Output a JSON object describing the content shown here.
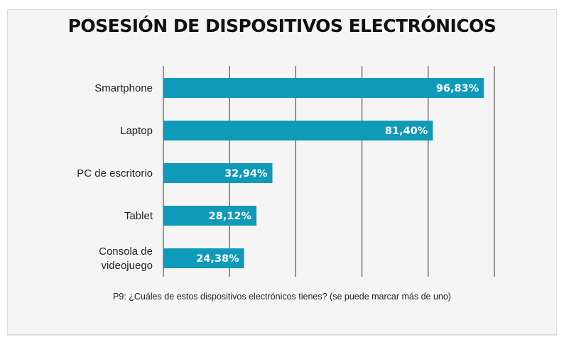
{
  "chart_data": {
    "type": "bar",
    "orientation": "horizontal",
    "title": "POSESIÓN DE DISPOSITIVOS ELECTRÓNICOS",
    "categories": [
      "Smartphone",
      "Laptop",
      "PC de escritorio",
      "Tablet",
      "Consola de videojuego"
    ],
    "category_lines": [
      [
        "Smartphone"
      ],
      [
        "Laptop"
      ],
      [
        "PC de escritorio"
      ],
      [
        "Tablet"
      ],
      [
        "Consola de",
        "videojuego"
      ]
    ],
    "values": [
      96.83,
      81.4,
      32.94,
      28.12,
      24.38
    ],
    "value_labels": [
      "96,83%",
      "81,40%",
      "32,94%",
      "28,12%",
      "24,38%"
    ],
    "xlabel": "",
    "ylabel": "",
    "xlim": [
      0,
      100
    ],
    "gridlines": [
      0,
      20,
      40,
      60,
      80,
      100
    ],
    "grid": true,
    "legend": "none",
    "bar_color": "#0f9ab9",
    "footnote": "P9: ¿Cuáles de estos dispositivos electrónicos tienes? (se puede marcar más de uno)"
  }
}
